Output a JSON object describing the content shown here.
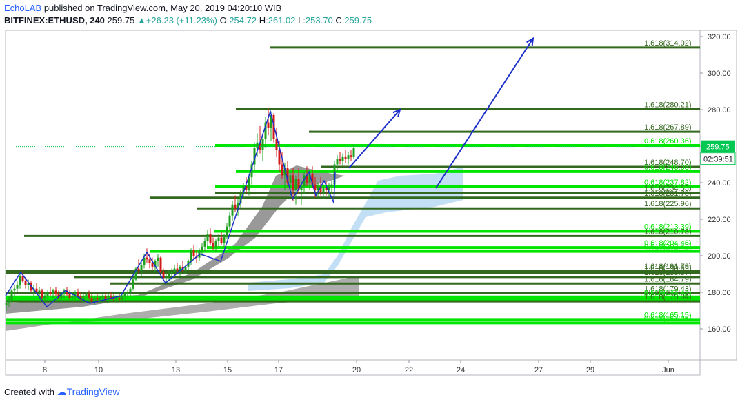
{
  "header": {
    "publisher": "EchoLAB",
    "published_text": "published on TradingView.com, May 20, 2019 04:20:10 WIB",
    "symbol": "BITFINEX:ETHUSD, 240",
    "last": "259.75",
    "change": "+26.23 (+11.23%)",
    "o_label": "O:",
    "o_value": "254.72",
    "h_label": "H:",
    "h_value": "261.02",
    "l_label": "L:",
    "l_value": "253.70",
    "c_label": "C:",
    "c_value": "259.75"
  },
  "footer": {
    "created_with": "Created with",
    "brand": "TradingView"
  },
  "colors": {
    "up": "#26a69a",
    "down": "#ef5350",
    "level_dark": "#33691e",
    "level_bright": "#00e600",
    "arrow": "#1b2fc9",
    "cloud": "#a9d1f2",
    "axis_text": "#333333",
    "price_badge": "#00c853",
    "timer_badge": "#00c853"
  },
  "chart_data": {
    "type": "candlestick",
    "x_ticks": [
      "8",
      "10",
      "13",
      "15",
      "17",
      "20",
      "22",
      "24",
      "27",
      "29",
      "Jun"
    ],
    "y_ticks": [
      "160.00",
      "180.00",
      "200.00",
      "220.00",
      "240.00",
      "260.00",
      "280.00",
      "300.00",
      "320.00"
    ],
    "ylim": [
      145,
      325
    ],
    "last_price_label": "259.75",
    "countdown_label": "02:39:51",
    "fib_levels": [
      {
        "label": "1.618(314.02)",
        "value": 314.02,
        "style": "dark"
      },
      {
        "label": "1.618(280.21)",
        "value": 280.21,
        "style": "dark"
      },
      {
        "label": "1.618(267.89)",
        "value": 267.89,
        "style": "dark"
      },
      {
        "label": "0.618(260.36)",
        "value": 260.36,
        "style": "bright"
      },
      {
        "label": "1.618(248.70)",
        "value": 248.7,
        "style": "dark"
      },
      {
        "label": "0.618(246.08)",
        "value": 246.08,
        "style": "bright"
      },
      {
        "label": "0.618(237.82)",
        "value": 237.82,
        "style": "bright"
      },
      {
        "label": "1.618(234.53)",
        "value": 234.53,
        "style": "dark"
      },
      {
        "label": "1.618(231.78)",
        "value": 231.78,
        "style": "dark"
      },
      {
        "label": "1.618(225.96)",
        "value": 225.96,
        "style": "dark"
      },
      {
        "label": "0.618(213.39)",
        "value": 213.39,
        "style": "bright"
      },
      {
        "label": "1.618(210.78)",
        "value": 210.78,
        "style": "dark"
      },
      {
        "label": "0.618(204.46)",
        "value": 204.46,
        "style": "bright"
      },
      {
        "label": "0.618(202.42)",
        "value": 202.42,
        "style": "bright"
      },
      {
        "label": "1.618(191.79)",
        "value": 191.79,
        "style": "dark"
      },
      {
        "label": "1.618(190.69)",
        "value": 190.69,
        "style": "dark"
      },
      {
        "label": "1.618(188.37)",
        "value": 188.37,
        "style": "dark"
      },
      {
        "label": "1.618(184.79)",
        "value": 184.79,
        "style": "dark"
      },
      {
        "label": "1.618(179.43)",
        "value": 179.43,
        "style": "dark"
      },
      {
        "label": "0.618(177.43)",
        "value": 177.43,
        "style": "bright"
      },
      {
        "label": "0.618(176.06)",
        "value": 176.06,
        "style": "bright"
      },
      {
        "label": "1.618(175.04)",
        "value": 175.04,
        "style": "dark"
      },
      {
        "label": "0.618(165.15)",
        "value": 165.15,
        "style": "bright"
      },
      {
        "label": "0.618(163.26)",
        "value": 163.26,
        "style": "bright"
      }
    ],
    "candles": [
      [
        9,
        173,
        176,
        170,
        174
      ],
      [
        13,
        174,
        178,
        172,
        176
      ],
      [
        17,
        176,
        182,
        174,
        181
      ],
      [
        21,
        181,
        184,
        178,
        182
      ],
      [
        25,
        182,
        186,
        180,
        184
      ],
      [
        29,
        184,
        191,
        182,
        189
      ],
      [
        33,
        189,
        192,
        185,
        186
      ],
      [
        37,
        186,
        188,
        182,
        184
      ],
      [
        41,
        184,
        187,
        181,
        185
      ],
      [
        45,
        185,
        186,
        180,
        181
      ],
      [
        49,
        181,
        184,
        178,
        182
      ],
      [
        53,
        182,
        185,
        179,
        180
      ],
      [
        57,
        180,
        183,
        177,
        181
      ],
      [
        61,
        181,
        182,
        176,
        177
      ],
      [
        65,
        177,
        180,
        174,
        178
      ],
      [
        69,
        178,
        181,
        176,
        180
      ],
      [
        73,
        180,
        183,
        178,
        179
      ],
      [
        77,
        179,
        182,
        177,
        181
      ],
      [
        81,
        181,
        183,
        178,
        179
      ],
      [
        85,
        179,
        181,
        176,
        177
      ],
      [
        89,
        177,
        180,
        175,
        179
      ],
      [
        93,
        179,
        182,
        177,
        181
      ],
      [
        97,
        181,
        183,
        178,
        179
      ],
      [
        101,
        179,
        181,
        176,
        177
      ],
      [
        105,
        177,
        180,
        175,
        178
      ],
      [
        109,
        178,
        181,
        176,
        180
      ],
      [
        113,
        180,
        182,
        177,
        178
      ],
      [
        117,
        178,
        180,
        175,
        176
      ],
      [
        121,
        176,
        179,
        174,
        178
      ],
      [
        125,
        178,
        180,
        176,
        179
      ],
      [
        129,
        179,
        181,
        176,
        177
      ],
      [
        133,
        177,
        179,
        174,
        175
      ],
      [
        137,
        175,
        178,
        173,
        177
      ],
      [
        141,
        177,
        179,
        174,
        176
      ],
      [
        145,
        176,
        178,
        174,
        177
      ],
      [
        149,
        177,
        179,
        175,
        178
      ],
      [
        153,
        178,
        180,
        175,
        176
      ],
      [
        157,
        176,
        179,
        174,
        178
      ],
      [
        161,
        178,
        180,
        176,
        177
      ],
      [
        165,
        177,
        179,
        175,
        176
      ],
      [
        169,
        176,
        178,
        174,
        177
      ],
      [
        173,
        177,
        179,
        175,
        176
      ],
      [
        177,
        176,
        179,
        175,
        178
      ],
      [
        181,
        178,
        180,
        176,
        179
      ],
      [
        185,
        179,
        181,
        177,
        180
      ],
      [
        189,
        180,
        183,
        178,
        182
      ],
      [
        193,
        182,
        188,
        181,
        187
      ],
      [
        197,
        187,
        194,
        186,
        193
      ],
      [
        201,
        193,
        198,
        190,
        192
      ],
      [
        205,
        192,
        197,
        189,
        195
      ],
      [
        209,
        195,
        201,
        193,
        199
      ],
      [
        213,
        199,
        204,
        196,
        198
      ],
      [
        217,
        198,
        201,
        193,
        196
      ],
      [
        221,
        196,
        199,
        192,
        194
      ],
      [
        225,
        194,
        198,
        191,
        197
      ],
      [
        229,
        197,
        201,
        194,
        199
      ],
      [
        233,
        199,
        200,
        189,
        191
      ],
      [
        237,
        191,
        193,
        186,
        188
      ],
      [
        241,
        188,
        191,
        185,
        189
      ],
      [
        245,
        189,
        192,
        186,
        190
      ],
      [
        249,
        190,
        193,
        187,
        191
      ],
      [
        253,
        191,
        195,
        189,
        193
      ],
      [
        257,
        193,
        196,
        190,
        192
      ],
      [
        261,
        192,
        195,
        189,
        194
      ],
      [
        265,
        194,
        197,
        191,
        192
      ],
      [
        269,
        192,
        195,
        190,
        194
      ],
      [
        273,
        194,
        198,
        192,
        197
      ],
      [
        277,
        197,
        204,
        195,
        203
      ],
      [
        281,
        203,
        206,
        198,
        200
      ],
      [
        285,
        200,
        203,
        196,
        199
      ],
      [
        289,
        199,
        204,
        197,
        203
      ],
      [
        293,
        203,
        207,
        200,
        205
      ],
      [
        297,
        205,
        210,
        202,
        208
      ],
      [
        301,
        208,
        214,
        205,
        212
      ],
      [
        305,
        212,
        215,
        206,
        207
      ],
      [
        309,
        207,
        210,
        203,
        205
      ],
      [
        313,
        205,
        209,
        202,
        208
      ],
      [
        317,
        208,
        212,
        205,
        210
      ],
      [
        321,
        210,
        213,
        206,
        207
      ],
      [
        325,
        207,
        212,
        205,
        211
      ],
      [
        329,
        211,
        218,
        209,
        216
      ],
      [
        333,
        216,
        224,
        214,
        222
      ],
      [
        337,
        222,
        230,
        219,
        228
      ],
      [
        341,
        228,
        233,
        224,
        226
      ],
      [
        345,
        226,
        231,
        222,
        229
      ],
      [
        349,
        229,
        236,
        226,
        234
      ],
      [
        353,
        234,
        240,
        231,
        238
      ],
      [
        357,
        238,
        243,
        234,
        236
      ],
      [
        361,
        236,
        245,
        233,
        243
      ],
      [
        365,
        243,
        252,
        239,
        250
      ],
      [
        369,
        250,
        262,
        247,
        259
      ],
      [
        373,
        259,
        267,
        254,
        262
      ],
      [
        377,
        262,
        271,
        256,
        258
      ],
      [
        381,
        258,
        266,
        252,
        264
      ],
      [
        385,
        264,
        276,
        259,
        273
      ],
      [
        389,
        273,
        281,
        266,
        270
      ],
      [
        393,
        270,
        279,
        263,
        277
      ],
      [
        397,
        277,
        278,
        262,
        264
      ],
      [
        401,
        264,
        270,
        254,
        258
      ],
      [
        405,
        258,
        263,
        246,
        250
      ],
      [
        409,
        250,
        257,
        242,
        244
      ],
      [
        413,
        244,
        251,
        236,
        248
      ],
      [
        417,
        248,
        252,
        238,
        240
      ],
      [
        421,
        240,
        246,
        232,
        244
      ],
      [
        425,
        244,
        248,
        230,
        236
      ],
      [
        429,
        236,
        244,
        228,
        242
      ],
      [
        433,
        242,
        248,
        234,
        236
      ],
      [
        437,
        236,
        241,
        228,
        238
      ],
      [
        441,
        238,
        246,
        234,
        244
      ],
      [
        445,
        244,
        249,
        238,
        240
      ],
      [
        449,
        240,
        247,
        236,
        245
      ],
      [
        453,
        245,
        249,
        237,
        239
      ],
      [
        457,
        239,
        243,
        232,
        236
      ],
      [
        461,
        236,
        240,
        232,
        238
      ],
      [
        465,
        238,
        243,
        233,
        235
      ],
      [
        469,
        235,
        239,
        231,
        237
      ],
      [
        473,
        237,
        241,
        233,
        236
      ],
      [
        477,
        236,
        240,
        232,
        238
      ],
      [
        481,
        238,
        241,
        234,
        239
      ],
      [
        485,
        239,
        252,
        237,
        250
      ],
      [
        489,
        250,
        255,
        246,
        253
      ],
      [
        493,
        253,
        257,
        250,
        252
      ],
      [
        497,
        252,
        256,
        249,
        254
      ],
      [
        501,
        254,
        258,
        251,
        253
      ],
      [
        505,
        253,
        257,
        250,
        255
      ],
      [
        509,
        255,
        258,
        252,
        254
      ],
      [
        513,
        254,
        261,
        253,
        259
      ]
    ],
    "arrows": [
      {
        "from": [
          506,
          248
        ],
        "to": [
          580,
          280
        ]
      },
      {
        "from": [
          632,
          237
        ],
        "to": [
          773,
          319
        ]
      }
    ]
  }
}
